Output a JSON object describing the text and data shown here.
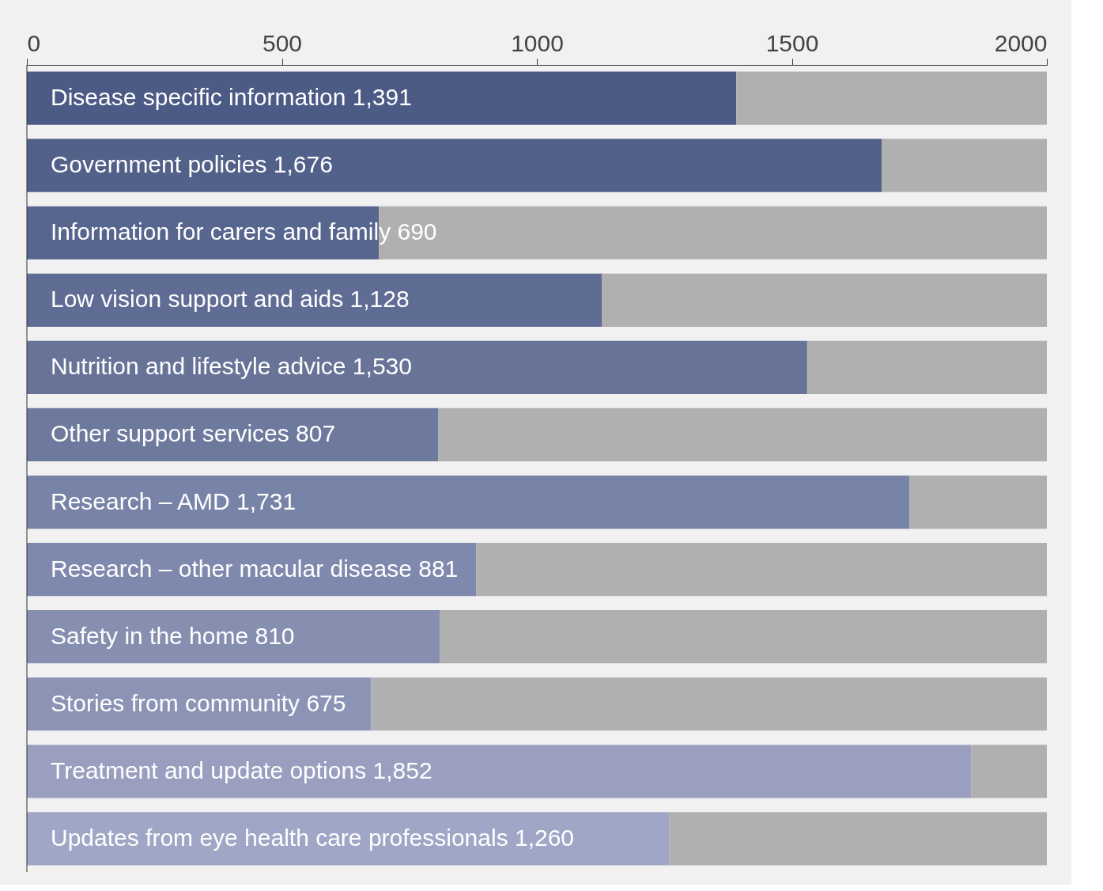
{
  "chart_data": {
    "type": "bar",
    "orientation": "horizontal",
    "stacked": true,
    "categories": [
      "Disease specific information",
      "Government policies",
      "Information for carers and family",
      "Low vision support and aids",
      "Nutrition and lifestyle advice",
      "Other support services",
      "Research – AMD",
      "Research – other macular disease",
      "Safety in the home",
      "Stories from community",
      "Treatment and update options",
      "Updates from eye health care professionals"
    ],
    "series": [
      {
        "colors": [
          "#4b5b86",
          "#52618a",
          "#57668e",
          "#5f6c94",
          "#677498",
          "#6e7a9d",
          "#7883a8",
          "#7f89ad",
          "#868fb0",
          "#8c94b5",
          "#9a9fbf",
          "#a0a6c6"
        ],
        "values": [
          1391,
          1676,
          690,
          1128,
          1530,
          807,
          1731,
          881,
          810,
          675,
          1852,
          1260
        ],
        "value_labels": [
          "1,391",
          "1,676",
          "690",
          "1,128",
          "1,530",
          "807",
          "1,731",
          "881",
          "810",
          "675",
          "1,852",
          "1,260"
        ]
      },
      {
        "color": "#b0b0b0",
        "values": [
          609,
          324,
          1310,
          872,
          470,
          1193,
          269,
          1119,
          1190,
          1325,
          148,
          740
        ]
      }
    ],
    "xlim": [
      0,
      2000
    ],
    "xticks": [
      0,
      500,
      1000,
      1500,
      2000
    ],
    "grid": false
  }
}
